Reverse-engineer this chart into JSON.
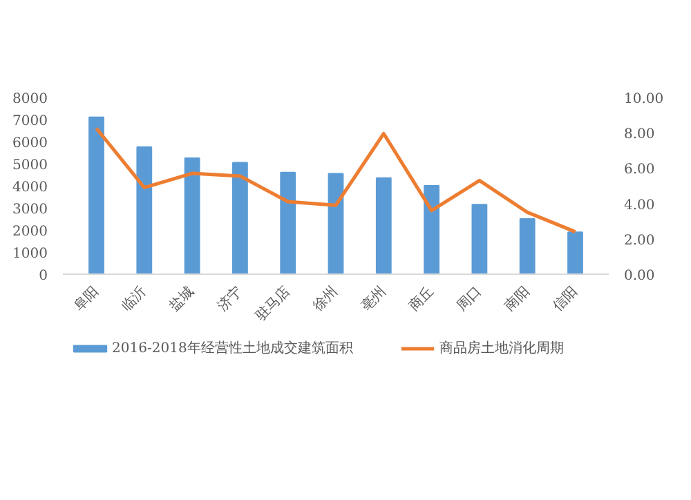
{
  "chart_data": {
    "type": "bar",
    "categories": [
      "阜阳",
      "临沂",
      "盐城",
      "济宁",
      "驻马店",
      "徐州",
      "亳州",
      "商丘",
      "周口",
      "南阳",
      "信阳"
    ],
    "series": [
      {
        "name": "2016-2018年经营性土地成交建筑面积",
        "color": "#5b9bd5",
        "values": [
          7100,
          5750,
          5250,
          5050,
          4600,
          4550,
          4350,
          4000,
          3150,
          2500,
          1900
        ]
      },
      {
        "name": "商品房土地消化周期",
        "color": "#ed7d31",
        "type": "line",
        "axis": "y2",
        "values": [
          8.25,
          4.9,
          5.7,
          5.55,
          4.1,
          3.9,
          7.95,
          3.6,
          5.3,
          3.5,
          2.4
        ]
      }
    ],
    "ylim": [
      0,
      8000
    ],
    "yticks": [
      0,
      1000,
      2000,
      3000,
      4000,
      5000,
      6000,
      7000,
      8000
    ],
    "y2lim": [
      0,
      10
    ],
    "y2ticks": [
      {
        "value": 0,
        "label": "0.00"
      },
      {
        "value": 2,
        "label": "2.00"
      },
      {
        "value": 4,
        "label": "4.00"
      },
      {
        "value": 6,
        "label": "6.00"
      },
      {
        "value": 8,
        "label": "8.00"
      },
      {
        "value": 10,
        "label": "10.00"
      }
    ],
    "legend": "bottom",
    "grid": false
  }
}
